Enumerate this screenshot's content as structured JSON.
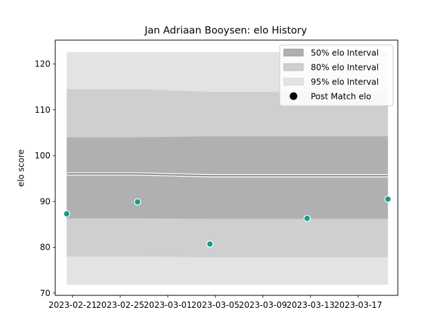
{
  "chart_data": {
    "type": "line",
    "title": "Jan Adriaan Booysen: elo History",
    "xlabel": "",
    "ylabel": "elo score",
    "xlim": [
      "2023-02-19T13:00",
      "2023-03-20T08:00"
    ],
    "ylim": [
      69.5,
      125.2
    ],
    "x_ticks": [
      "2023-02-21",
      "2023-02-25",
      "2023-03-01",
      "2023-03-05",
      "2023-03-09",
      "2023-03-13",
      "2023-03-17"
    ],
    "y_ticks": [
      70,
      80,
      90,
      100,
      110,
      120
    ],
    "grid": false,
    "legend_position": "top-right",
    "colors": {
      "band_50": "#b0b0b0",
      "band_80": "#cfcfcf",
      "band_95": "#e3e3e3",
      "mean_line": "#808080",
      "points": "#139e8b"
    },
    "series": [
      {
        "name": "50% elo Interval",
        "kind": "band",
        "x": [
          "2023-02-20T12:00",
          "2023-02-26T11:00",
          "2023-03-04T13:00",
          "2023-03-19T12:00"
        ],
        "lower": [
          86.3,
          86.3,
          86.2,
          86.2
        ],
        "upper": [
          104.0,
          104.0,
          104.2,
          104.2
        ]
      },
      {
        "name": "80% elo Interval",
        "kind": "band",
        "x": [
          "2023-02-20T12:00",
          "2023-02-26T11:00",
          "2023-03-04T13:00",
          "2023-03-19T12:00"
        ],
        "lower": [
          78.0,
          78.0,
          77.8,
          77.8
        ],
        "upper": [
          114.5,
          114.5,
          113.9,
          113.9
        ]
      },
      {
        "name": "95% elo Interval",
        "kind": "band",
        "x": [
          "2023-02-20T12:00",
          "2023-02-26T11:00",
          "2023-03-04T13:00",
          "2023-03-19T12:00"
        ],
        "lower": [
          71.8,
          71.8,
          71.8,
          71.8
        ],
        "upper": [
          122.6,
          122.6,
          122.6,
          122.6
        ]
      },
      {
        "kind": "line",
        "x": [
          "2023-02-20T12:00",
          "2023-02-26T11:00",
          "2023-03-04T13:00",
          "2023-03-19T12:00"
        ],
        "y": [
          96.0,
          96.0,
          95.6,
          95.6
        ]
      },
      {
        "name": "Post Match elo",
        "kind": "scatter",
        "x": [
          "2023-02-20T12:00",
          "2023-02-26T11:00",
          "2023-03-04T13:00",
          "2023-03-12T17:00",
          "2023-03-19T12:00"
        ],
        "y": [
          87.3,
          89.9,
          80.7,
          86.3,
          90.5
        ]
      }
    ]
  }
}
